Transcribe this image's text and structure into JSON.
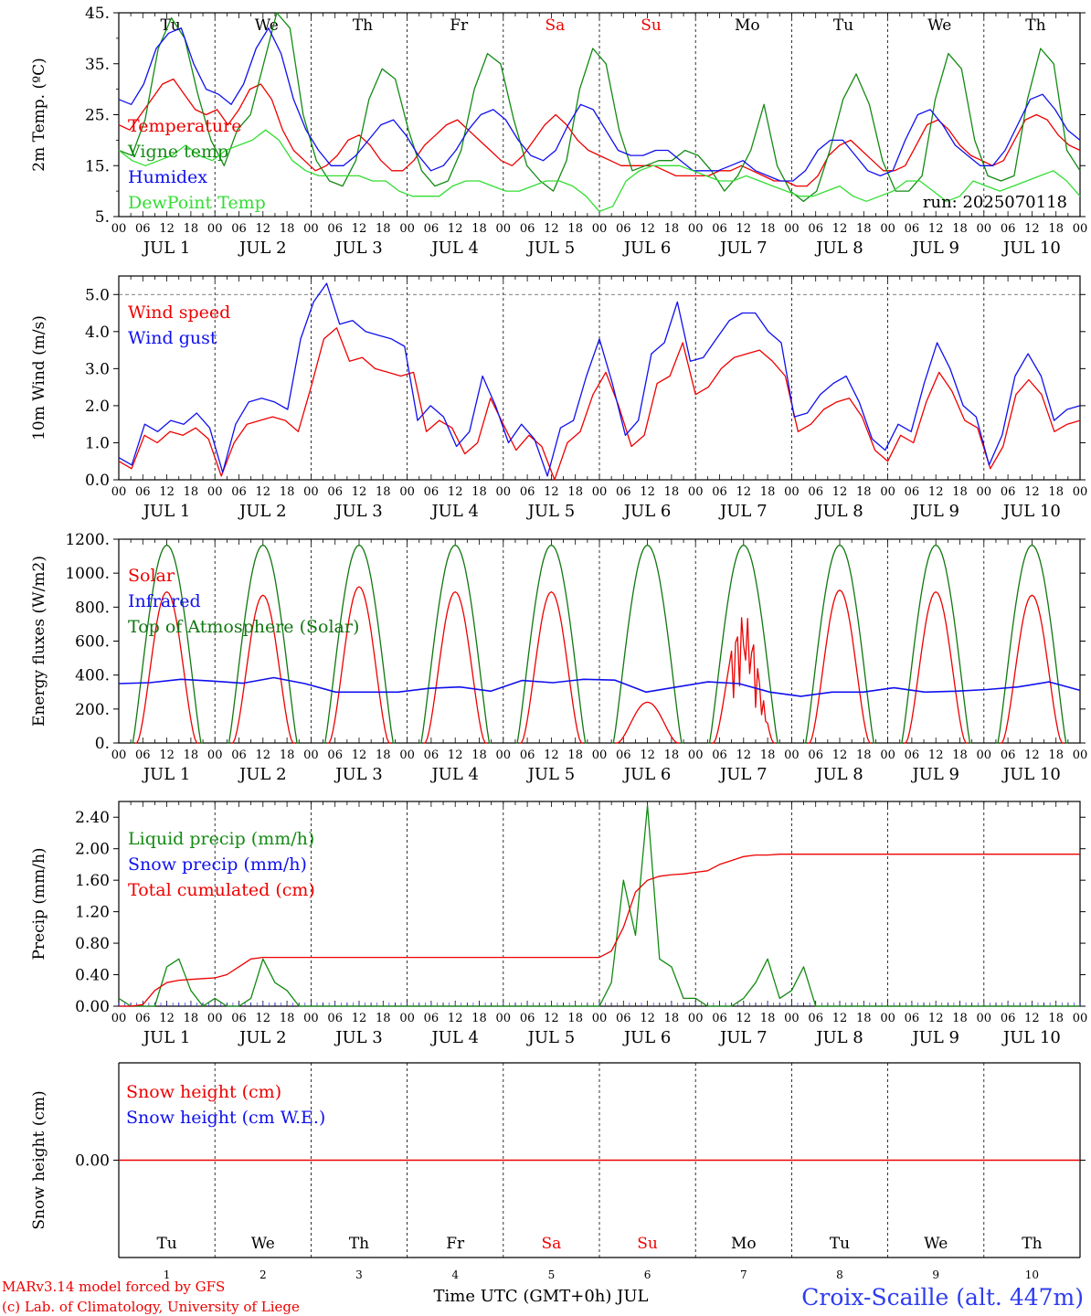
{
  "days": [
    {
      "abbr": "Tu",
      "num": "1",
      "label": "JUL  1",
      "weekend": false
    },
    {
      "abbr": "We",
      "num": "2",
      "label": "JUL  2",
      "weekend": false
    },
    {
      "abbr": "Th",
      "num": "3",
      "label": "JUL  3",
      "weekend": false
    },
    {
      "abbr": "Fr",
      "num": "4",
      "label": "JUL  4",
      "weekend": false
    },
    {
      "abbr": "Sa",
      "num": "5",
      "label": "JUL  5",
      "weekend": true
    },
    {
      "abbr": "Su",
      "num": "6",
      "label": "JUL  6",
      "weekend": true
    },
    {
      "abbr": "Mo",
      "num": "7",
      "label": "JUL  7",
      "weekend": false
    },
    {
      "abbr": "Tu",
      "num": "8",
      "label": "JUL  8",
      "weekend": false
    },
    {
      "abbr": "We",
      "num": "9",
      "label": "JUL  9",
      "weekend": false
    },
    {
      "abbr": "Th",
      "num": "10",
      "label": "JUL 10",
      "weekend": false
    }
  ],
  "hour_ticks": [
    "00",
    "06",
    "12",
    "18"
  ],
  "final_tick": "00",
  "colors": {
    "red": "#ee0000",
    "green": "#138a13",
    "blue": "#1010ee",
    "light_green": "#33dd33",
    "dark_green": "#117711",
    "axis": "#000000",
    "weekend": "#ee0000",
    "location": "#2d3cf0"
  },
  "footer": {
    "credit_line1": "MARv3.14 model forced by GFS",
    "credit_line2": "(c) Lab. of Climatology, University of Liege",
    "time_label": "Time UTC (GMT+0h) JUL",
    "location": "Croix-Scaille (alt. 447m)"
  },
  "chart_data": [
    {
      "type": "line",
      "ylabel": "2m Temp. (ºC)",
      "ylim": [
        5,
        45
      ],
      "yticks": [
        "5.",
        "15.",
        "25.",
        "35.",
        "45."
      ],
      "run_label": "run: 2025070118",
      "x": "hours since JUL 1 00 UTC, 3-hourly",
      "series": [
        {
          "name": "Temperature",
          "color": "red",
          "values": [
            23,
            22,
            25,
            28,
            31,
            32,
            29,
            26,
            25,
            26,
            23,
            26,
            30,
            31,
            28,
            22,
            18,
            16,
            14,
            15,
            17,
            20,
            21,
            19,
            16,
            14,
            14,
            16,
            19,
            21,
            23,
            24,
            22,
            20,
            18,
            16,
            15,
            17,
            20,
            23,
            25,
            23,
            20,
            18,
            17,
            16,
            15,
            15,
            15,
            15,
            14,
            13,
            13,
            13,
            13,
            14,
            14,
            15,
            14,
            13,
            12,
            12,
            11,
            11,
            13,
            17,
            19,
            20,
            18,
            16,
            14,
            14,
            15,
            19,
            23,
            24,
            22,
            19,
            17,
            16,
            15,
            16,
            20,
            24,
            25,
            24,
            21,
            19,
            18
          ]
        },
        {
          "name": "Vigne temp",
          "color": "green",
          "values": [
            18,
            17,
            24,
            38,
            44,
            40,
            29,
            20,
            15,
            22,
            25,
            35,
            45,
            42,
            25,
            16,
            12,
            11,
            16,
            28,
            34,
            32,
            22,
            14,
            11,
            12,
            18,
            30,
            37,
            35,
            24,
            15,
            12,
            10,
            16,
            30,
            38,
            35,
            22,
            14,
            15,
            16,
            16,
            18,
            17,
            14,
            10,
            13,
            18,
            27,
            15,
            10,
            8,
            10,
            18,
            28,
            33,
            27,
            16,
            10,
            10,
            13,
            28,
            37,
            34,
            20,
            13,
            12,
            13,
            28,
            38,
            35,
            18,
            14
          ]
        },
        {
          "name": "Humidex",
          "color": "blue",
          "values": [
            28,
            27,
            31,
            38,
            41,
            42,
            35,
            30,
            29,
            27,
            31,
            38,
            42,
            37,
            28,
            22,
            18,
            15,
            15,
            17,
            20,
            23,
            24,
            21,
            17,
            14,
            15,
            18,
            22,
            25,
            26,
            24,
            20,
            17,
            16,
            18,
            23,
            27,
            26,
            22,
            18,
            17,
            17,
            18,
            18,
            16,
            14,
            14,
            14,
            15,
            16,
            14,
            13,
            12,
            12,
            14,
            18,
            20,
            20,
            17,
            14,
            13,
            14,
            20,
            25,
            26,
            23,
            19,
            17,
            15,
            15,
            18,
            23,
            28,
            29,
            26,
            22,
            20
          ]
        },
        {
          "name": "DewPoint Temp",
          "color": "light_green",
          "values": [
            18,
            16,
            15,
            16,
            17,
            19,
            17,
            16,
            18,
            19,
            20,
            22,
            20,
            16,
            14,
            13,
            13,
            13,
            13,
            12,
            12,
            10,
            9,
            9,
            9,
            11,
            12,
            12,
            11,
            10,
            10,
            11,
            12,
            12,
            11,
            9,
            6,
            7,
            12,
            14,
            15,
            15,
            15,
            14,
            13,
            12,
            12,
            13,
            12,
            11,
            10,
            9,
            9,
            10,
            11,
            9,
            8,
            9,
            10,
            12,
            12,
            10,
            8,
            9,
            12,
            11,
            10,
            11,
            12,
            13,
            14,
            12,
            9
          ]
        }
      ]
    },
    {
      "type": "line",
      "ylabel": "10m Wind (m/s)",
      "ylim": [
        0,
        5.5
      ],
      "yticks": [
        "0.0",
        "1.0",
        "2.0",
        "3.0",
        "4.0",
        "5.0"
      ],
      "dashed_at": 5.0,
      "x": "hours since JUL 1 00 UTC, 3-hourly",
      "series": [
        {
          "name": "Wind speed",
          "color": "red",
          "values": [
            0.5,
            0.3,
            1.2,
            1.0,
            1.3,
            1.2,
            1.4,
            1.1,
            0.1,
            1.0,
            1.5,
            1.6,
            1.7,
            1.6,
            1.3,
            2.5,
            3.8,
            4.1,
            3.2,
            3.3,
            3.0,
            2.9,
            2.8,
            2.9,
            1.3,
            1.6,
            1.4,
            0.7,
            1.0,
            2.2,
            1.5,
            0.8,
            1.2,
            0.9,
            0.0,
            1.0,
            1.3,
            2.3,
            2.9,
            2.0,
            0.9,
            1.2,
            2.6,
            2.8,
            3.7,
            2.3,
            2.5,
            3.0,
            3.3,
            3.4,
            3.5,
            3.2,
            2.8,
            1.3,
            1.5,
            1.9,
            2.1,
            2.2,
            1.7,
            0.8,
            0.5,
            1.2,
            1.0,
            2.1,
            2.9,
            2.4,
            1.6,
            1.4,
            0.3,
            0.9,
            2.3,
            2.7,
            2.3,
            1.3,
            1.5,
            1.6
          ]
        },
        {
          "name": "Wind gust",
          "color": "blue",
          "values": [
            0.6,
            0.4,
            1.5,
            1.3,
            1.6,
            1.5,
            1.8,
            1.4,
            0.2,
            1.5,
            2.1,
            2.2,
            2.1,
            1.9,
            3.8,
            4.8,
            5.3,
            4.2,
            4.3,
            4.0,
            3.9,
            3.8,
            3.6,
            1.6,
            2.0,
            1.7,
            0.9,
            1.3,
            2.8,
            2.0,
            1.0,
            1.5,
            1.1,
            0.1,
            1.4,
            1.6,
            2.8,
            3.8,
            2.6,
            1.2,
            1.6,
            3.4,
            3.7,
            4.8,
            3.2,
            3.3,
            3.8,
            4.3,
            4.5,
            4.5,
            4.0,
            3.7,
            1.7,
            1.8,
            2.3,
            2.6,
            2.8,
            2.1,
            1.1,
            0.8,
            1.5,
            1.3,
            2.6,
            3.7,
            3.0,
            2.0,
            1.7,
            0.4,
            1.2,
            2.8,
            3.4,
            2.8,
            1.6,
            1.9,
            2.0
          ]
        }
      ]
    },
    {
      "type": "line",
      "ylabel": "Energy fluxes (W/m2)",
      "ylim": [
        0,
        1200
      ],
      "yticks": [
        "0.",
        "200.",
        "400.",
        "600.",
        "800.",
        "1000.",
        "1200."
      ],
      "x": "hours since JUL 1 00 UTC, hourly",
      "series": [
        {
          "name": "Solar",
          "color": "red",
          "day_peaks": [
            890,
            870,
            920,
            890,
            890,
            240,
            760,
            900,
            890,
            870
          ]
        },
        {
          "name": "Infrared",
          "color": "blue",
          "values": [
            350,
            355,
            375,
            365,
            352,
            385,
            350,
            300,
            300,
            300,
            322,
            330,
            305,
            368,
            355,
            375,
            370,
            300,
            330,
            360,
            350,
            300,
            275,
            300,
            300,
            325,
            300,
            305,
            315,
            330,
            360,
            310
          ]
        },
        {
          "name": "Top of Atmosphere (Solar)",
          "color": "dark_green",
          "day_peak": 1165
        }
      ]
    },
    {
      "type": "line",
      "ylabel": "Precip (mm/h)",
      "ylim": [
        0,
        2.6
      ],
      "yticks": [
        "0.00",
        "0.40",
        "0.80",
        "1.20",
        "1.60",
        "2.00",
        "2.40"
      ],
      "x": "hours since JUL 1 00 UTC, 3-hourly",
      "series": [
        {
          "name": "Liquid precip (mm/h)",
          "color": "green",
          "values": [
            0.1,
            0,
            0,
            0,
            0.5,
            0.6,
            0.2,
            0,
            0.1,
            0,
            0,
            0.1,
            0.6,
            0.3,
            0.2,
            0,
            0,
            0,
            0,
            0,
            0,
            0,
            0,
            0,
            0,
            0,
            0,
            0,
            0,
            0,
            0,
            0,
            0,
            0,
            0,
            0,
            0,
            0,
            0,
            0,
            0,
            0.3,
            1.6,
            0.9,
            2.55,
            0.6,
            0.5,
            0.1,
            0.1,
            0,
            0,
            0,
            0.1,
            0.3,
            0.6,
            0.1,
            0.2,
            0.5,
            0,
            0,
            0,
            0,
            0,
            0,
            0,
            0,
            0,
            0,
            0,
            0,
            0,
            0,
            0,
            0,
            0,
            0,
            0,
            0,
            0,
            0,
            0
          ]
        },
        {
          "name": "Snow precip (mm/h)",
          "color": "blue",
          "values": []
        },
        {
          "name": "Total cumulated (cm)",
          "color": "red",
          "values": [
            0,
            0,
            0.02,
            0.2,
            0.3,
            0.33,
            0.34,
            0.35,
            0.36,
            0.4,
            0.5,
            0.6,
            0.62,
            0.62,
            0.62,
            0.62,
            0.62,
            0.62,
            0.62,
            0.62,
            0.62,
            0.62,
            0.62,
            0.62,
            0.62,
            0.62,
            0.62,
            0.62,
            0.62,
            0.62,
            0.62,
            0.62,
            0.62,
            0.62,
            0.62,
            0.62,
            0.62,
            0.62,
            0.62,
            0.62,
            0.62,
            0.7,
            1.0,
            1.45,
            1.6,
            1.65,
            1.67,
            1.68,
            1.7,
            1.72,
            1.8,
            1.85,
            1.9,
            1.92,
            1.92,
            1.93,
            1.93,
            1.93,
            1.93,
            1.93,
            1.93,
            1.93,
            1.93,
            1.93,
            1.93,
            1.93,
            1.93,
            1.93,
            1.93,
            1.93,
            1.93,
            1.93,
            1.93,
            1.93,
            1.93,
            1.93,
            1.93,
            1.93,
            1.93,
            1.93,
            1.93
          ]
        }
      ]
    },
    {
      "type": "line",
      "ylabel": "Snow height (cm)",
      "ylim": [
        -1,
        1
      ],
      "yticks": [
        "0.00"
      ],
      "x": "hours since JUL 1 00 UTC",
      "series": [
        {
          "name": "Snow height (cm)",
          "color": "red",
          "values": [
            0,
            0
          ]
        },
        {
          "name": "Snow height (cm W.E.)",
          "color": "blue",
          "values": []
        }
      ]
    }
  ]
}
